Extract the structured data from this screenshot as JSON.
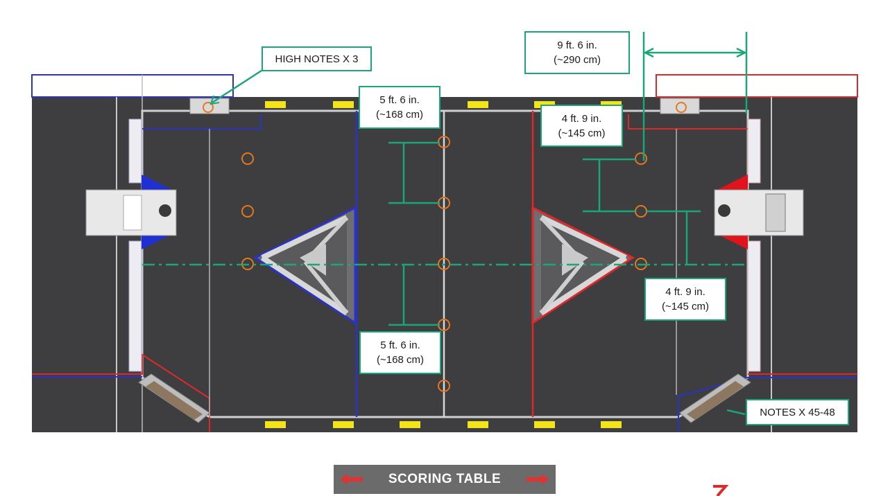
{
  "colors": {
    "carpet": "#3a3a3c",
    "blue_alliance": "#2a33c9",
    "red_alliance": "#e0282b",
    "measure_green": "#1aa57a",
    "note_orange": "#e3781e",
    "yellow_marker": "#f2e31b",
    "scoring_table": "#6b6b6b"
  },
  "labels": {
    "high_notes": "HIGH NOTES X 3",
    "notes_source": "NOTES X 45-48",
    "scoring_table": "SCORING TABLE"
  },
  "dimensions": {
    "wing_line": {
      "imperial": "9 ft. 6 in.",
      "metric": "(~290 cm)"
    },
    "top_center_spacing": {
      "imperial": "5 ft. 6 in.",
      "metric": "(~168 cm)"
    },
    "bottom_center_spacing": {
      "imperial": "5 ft. 6 in.",
      "metric": "(~168 cm)"
    },
    "red_upper_spacing": {
      "imperial": "4 ft. 9 in.",
      "metric": "(~145 cm)"
    },
    "red_lower_spacing": {
      "imperial": "4 ft. 9 in.",
      "metric": "(~145 cm)"
    }
  }
}
